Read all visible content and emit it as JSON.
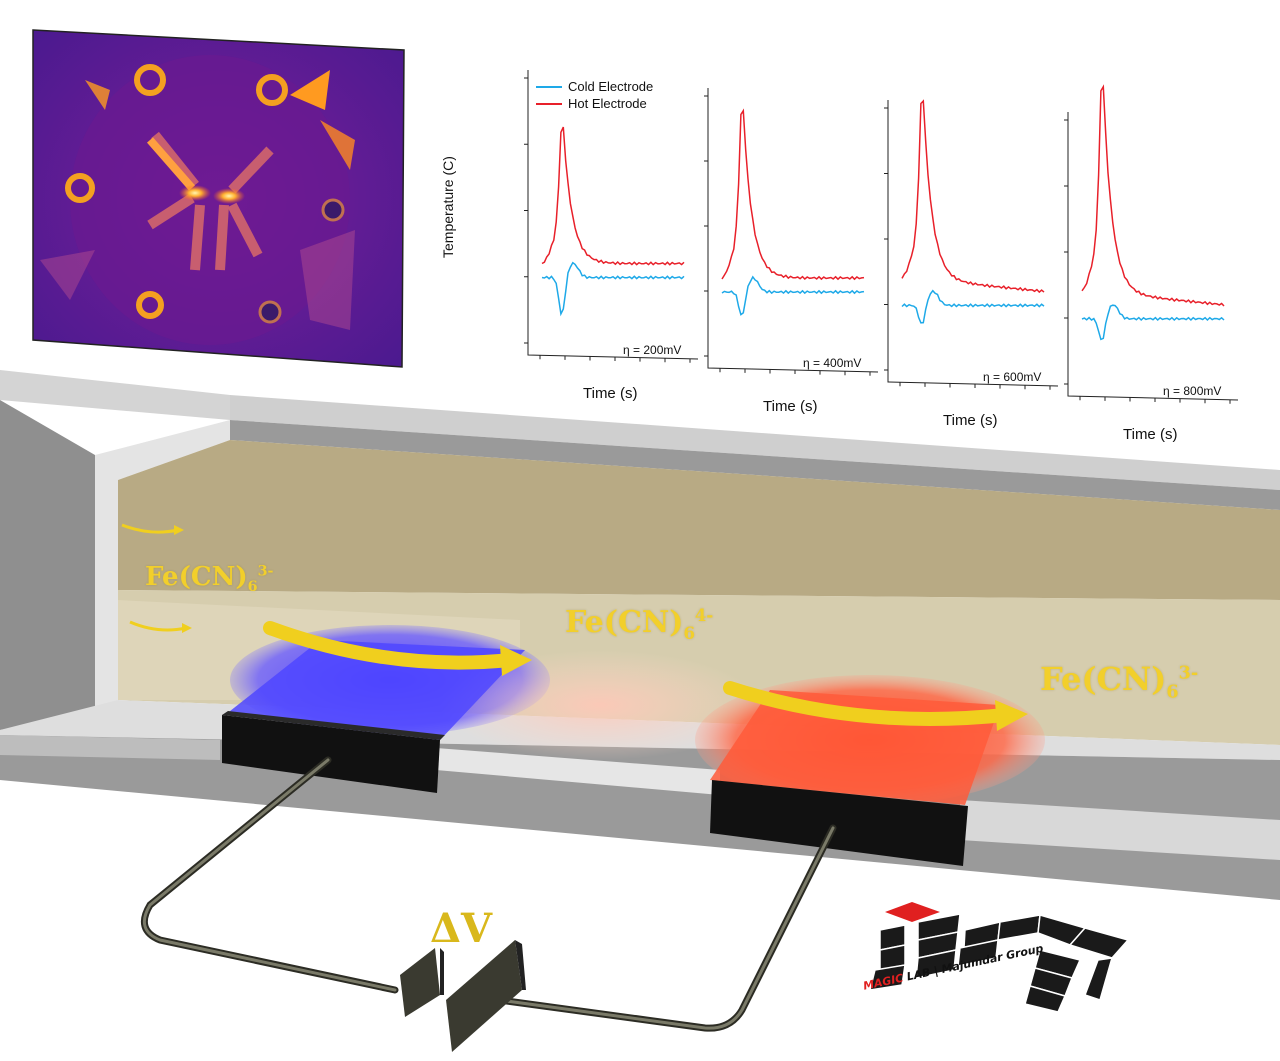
{
  "chart_data": {
    "type": "line",
    "ylabel": "Temperature (C)",
    "xlabel": "Time (s)",
    "legend": [
      "Cold Electrode",
      "Hot Electrode"
    ],
    "legend_placement": "top-left",
    "colors": {
      "cold": "#1ea9e8",
      "hot": "#e8202a"
    },
    "panels": [
      {
        "overpotential": "η = 200mV",
        "hot_peak": 0.62,
        "cold_dip": 0.15
      },
      {
        "overpotential": "η = 400mV",
        "hot_peak": 0.78,
        "cold_dip": 0.1
      },
      {
        "overpotential": "η = 600mV",
        "hot_peak": 0.83,
        "cold_dip": 0.08
      },
      {
        "overpotential": "η = 800mV",
        "hot_peak": 0.95,
        "cold_dip": 0.09
      }
    ]
  },
  "diagram": {
    "species_left": {
      "base": "Fe(CN)",
      "sub": "6",
      "sup": "3-"
    },
    "species_middle": {
      "base": "Fe(CN)",
      "sub": "6",
      "sup": "4-"
    },
    "species_right": {
      "base": "Fe(CN)",
      "sub": "6",
      "sup": "3-"
    },
    "voltage_label": "ΔV",
    "cold_electrode_color": "#4f46ff",
    "hot_electrode_color": "#ff5a3a",
    "arrow_color": "#f0cf1e"
  },
  "logo": {
    "brand_red": "MAGIC",
    "rest": " LAB | Majumdar Group"
  }
}
